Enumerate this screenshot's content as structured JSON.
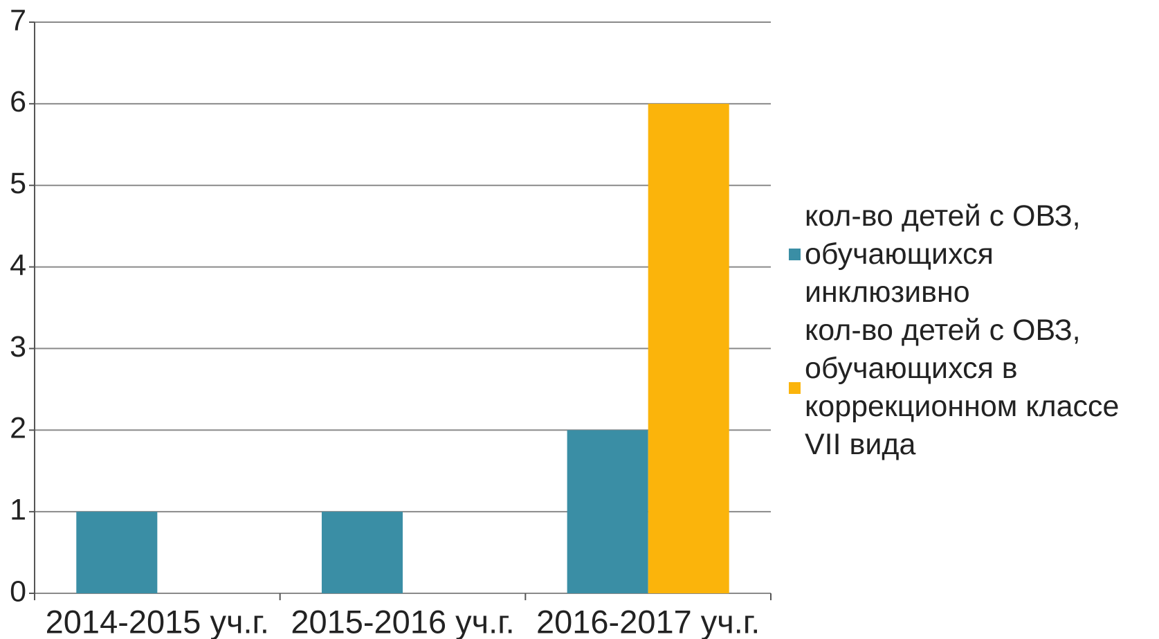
{
  "chart_data": {
    "type": "bar",
    "categories": [
      "2014-2015 уч.г.",
      "2015-2016 уч.г.",
      "2016-2017 уч.г."
    ],
    "series": [
      {
        "name": "кол-во детей с ОВЗ, обучающихся инклюзивно",
        "color": "#3a8ea5",
        "values": [
          1,
          1,
          2
        ]
      },
      {
        "name": "кол-во детей с ОВЗ, обучающихся в коррекционном классе VII вида",
        "color": "#fbb40b",
        "values": [
          0,
          0,
          6
        ]
      }
    ],
    "ylim": [
      0,
      7
    ],
    "yticks": [
      0,
      1,
      2,
      3,
      4,
      5,
      6,
      7
    ],
    "grid": true,
    "legend": "right"
  }
}
